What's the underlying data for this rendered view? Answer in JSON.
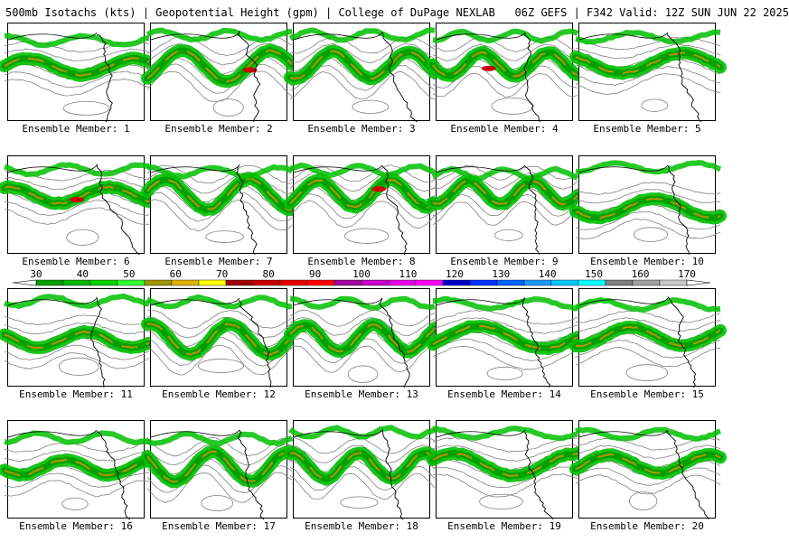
{
  "header": {
    "product": "500mb Isotachs (kts) | Geopotential Height (gpm) | College of DuPage NEXLAB",
    "run": "06Z GEFS | F342 Valid: 12Z SUN JUN 22 2025"
  },
  "colors": {
    "land_background": "#ffffff",
    "height_contour": "#808080",
    "coastline": "#000000",
    "jet_core_low": "#00aa00",
    "jet_core_high": "#cc0000"
  },
  "legend": {
    "labels": [
      "30",
      "40",
      "50",
      "60",
      "70",
      "80",
      "90",
      "100",
      "110",
      "120",
      "130",
      "140",
      "150",
      "160",
      "170"
    ],
    "bins": [
      "#00a000",
      "#00b400",
      "#00d200",
      "#32ff32",
      "#a09600",
      "#dcb400",
      "#ffff00",
      "#a00000",
      "#c80000",
      "#e60000",
      "#ff0000",
      "#a000a0",
      "#c800c8",
      "#e600e6",
      "#ff00ff",
      "#0000c8",
      "#0032ff",
      "#0064ff",
      "#1e96ff",
      "#00c8ff",
      "#00ffff",
      "#808080",
      "#a0a0a0",
      "#c8c8c8"
    ]
  },
  "members": [
    {
      "label": "Ensemble Member: 1"
    },
    {
      "label": "Ensemble Member: 2"
    },
    {
      "label": "Ensemble Member: 3"
    },
    {
      "label": "Ensemble Member: 4"
    },
    {
      "label": "Ensemble Member: 5"
    },
    {
      "label": "Ensemble Member: 6"
    },
    {
      "label": "Ensemble Member: 7"
    },
    {
      "label": "Ensemble Member: 8"
    },
    {
      "label": "Ensemble Member: 9"
    },
    {
      "label": "Ensemble Member: 10"
    },
    {
      "label": "Ensemble Member: 11"
    },
    {
      "label": "Ensemble Member: 12"
    },
    {
      "label": "Ensemble Member: 13"
    },
    {
      "label": "Ensemble Member: 14"
    },
    {
      "label": "Ensemble Member: 15"
    },
    {
      "label": "Ensemble Member: 16"
    },
    {
      "label": "Ensemble Member: 17"
    },
    {
      "label": "Ensemble Member: 18"
    },
    {
      "label": "Ensemble Member: 19"
    },
    {
      "label": "Ensemble Member: 20"
    }
  ]
}
